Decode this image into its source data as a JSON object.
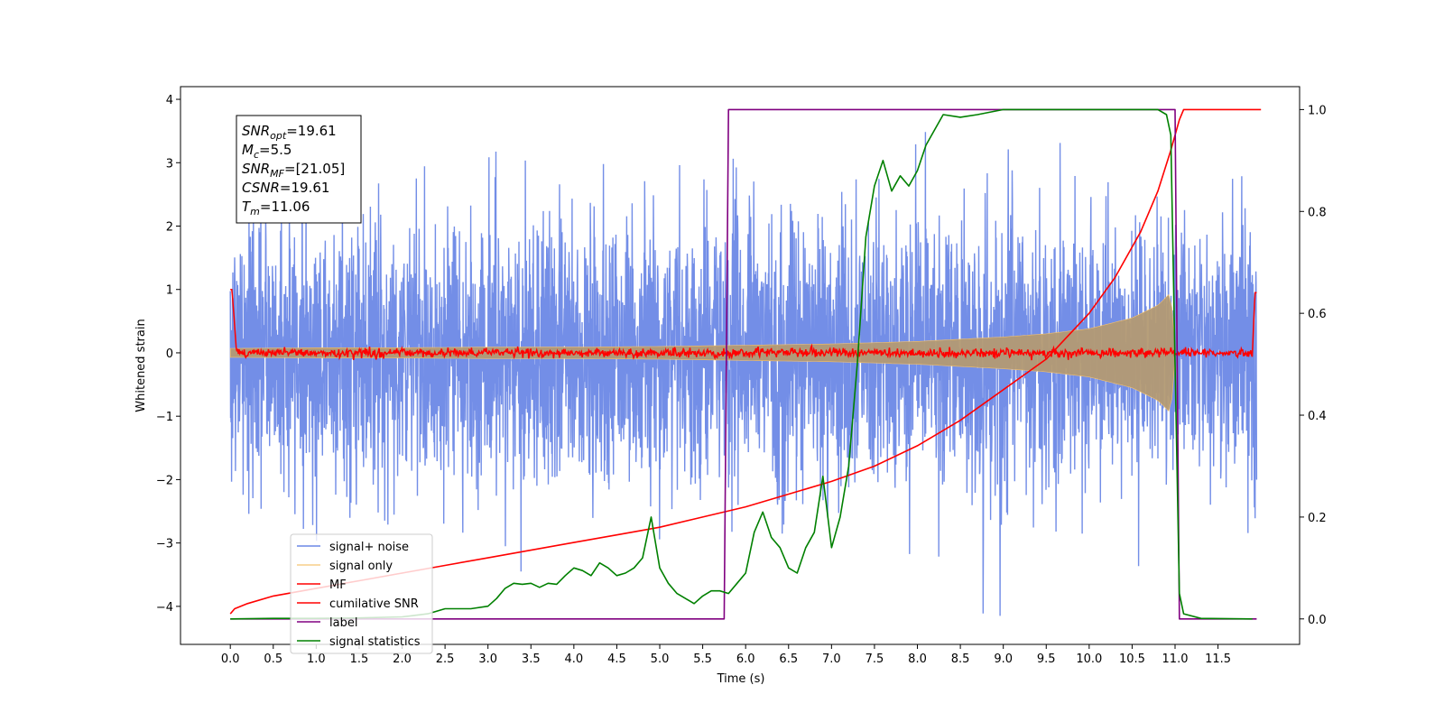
{
  "chart_data": {
    "type": "line",
    "title": "",
    "xlabel": "Time (s)",
    "ylabel": "Whitened strain",
    "y2label": "",
    "xlim": [
      -0.58,
      12.45
    ],
    "ylim": [
      -4.6,
      4.2
    ],
    "y2lim": [
      -0.05,
      1.045
    ],
    "grid": false,
    "legend_position": "lower-left",
    "x_ticks": [
      0.0,
      0.5,
      1.0,
      1.5,
      2.0,
      2.5,
      3.0,
      3.5,
      4.0,
      4.5,
      5.0,
      5.5,
      6.0,
      6.5,
      7.0,
      7.5,
      8.0,
      8.5,
      9.0,
      9.5,
      10.0,
      10.5,
      11.0,
      11.5
    ],
    "x_tick_labels": [
      "0.0",
      "0.5",
      "1.0",
      "1.5",
      "2.0",
      "2.5",
      "3.0",
      "3.5",
      "4.0",
      "4.5",
      "5.0",
      "5.5",
      "6.0",
      "6.5",
      "7.0",
      "7.5",
      "8.0",
      "8.5",
      "9.0",
      "9.5",
      "10.0",
      "10.5",
      "11.0",
      "11.5"
    ],
    "y_ticks": [
      -4,
      -3,
      -2,
      -1,
      0,
      1,
      2,
      3,
      4
    ],
    "y_tick_labels": [
      "−4",
      "−3",
      "−2",
      "−1",
      "0",
      "1",
      "2",
      "3",
      "4"
    ],
    "y2_ticks": [
      0.0,
      0.2,
      0.4,
      0.6,
      0.8,
      1.0
    ],
    "y2_tick_labels": [
      "0.0",
      "0.2",
      "0.4",
      "0.6",
      "0.8",
      "1.0"
    ],
    "annotation_lines": [
      {
        "sym": "SNR",
        "sub": "opt",
        "text": "=19.61"
      },
      {
        "sym": "M",
        "sub": "c",
        "text": "=5.5"
      },
      {
        "sym": "SNR",
        "sub": "MF",
        "text": "=[21.05]"
      },
      {
        "sym": "CSNR",
        "sub": "",
        "text": "=19.61"
      },
      {
        "sym": "T",
        "sub": "m",
        "text": "=11.06"
      }
    ],
    "series": [
      {
        "name": "signal+ noise",
        "color": "#6b88e6",
        "axis": "left",
        "description": "whitened noisy strain, approx. unit-variance noise spanning roughly -4 to 3.8 over 0-12 s"
      },
      {
        "name": "signal only",
        "color": "#f5c16c",
        "axis": "left",
        "envelope_x": [
          0.0,
          1.0,
          2.0,
          3.0,
          4.0,
          5.0,
          6.0,
          7.0,
          8.0,
          9.0,
          9.5,
          10.0,
          10.5,
          10.8,
          10.95,
          11.0
        ],
        "envelope_amp": [
          0.07,
          0.08,
          0.08,
          0.09,
          0.09,
          0.1,
          0.12,
          0.14,
          0.18,
          0.25,
          0.3,
          0.38,
          0.55,
          0.75,
          0.95,
          0.1
        ]
      },
      {
        "name": "MF",
        "color": "#ff0000",
        "axis": "left",
        "description": "matched-filter output, near 0 with small fluctuations, spikes to ~1.0 at both ends"
      },
      {
        "name": "cumilative SNR",
        "color": "#ff0000",
        "axis": "right",
        "x": [
          0.0,
          0.05,
          0.2,
          0.5,
          1.0,
          1.5,
          2.0,
          2.5,
          3.0,
          3.5,
          4.0,
          4.5,
          5.0,
          5.5,
          6.0,
          6.5,
          7.0,
          7.5,
          8.0,
          8.5,
          9.0,
          9.5,
          10.0,
          10.3,
          10.6,
          10.8,
          10.95,
          11.05,
          11.1,
          11.5,
          12.0
        ],
        "y": [
          0.01,
          0.02,
          0.03,
          0.045,
          0.06,
          0.075,
          0.09,
          0.105,
          0.12,
          0.135,
          0.15,
          0.165,
          0.18,
          0.2,
          0.22,
          0.245,
          0.27,
          0.3,
          0.34,
          0.39,
          0.45,
          0.51,
          0.6,
          0.67,
          0.76,
          0.84,
          0.92,
          0.98,
          1.0,
          1.0,
          1.0
        ]
      },
      {
        "name": "label",
        "color": "#800080",
        "axis": "right",
        "x": [
          0.0,
          5.75,
          5.8,
          11.0,
          11.05,
          11.95
        ],
        "y": [
          0.0,
          0.0,
          1.0,
          1.0,
          0.0,
          0.0
        ]
      },
      {
        "name": "signal statistics",
        "color": "#008000",
        "axis": "right",
        "x": [
          0.0,
          0.5,
          1.0,
          1.5,
          2.0,
          2.1,
          2.3,
          2.5,
          2.6,
          2.8,
          3.0,
          3.1,
          3.2,
          3.3,
          3.4,
          3.5,
          3.6,
          3.7,
          3.8,
          3.9,
          4.0,
          4.1,
          4.2,
          4.3,
          4.4,
          4.5,
          4.6,
          4.7,
          4.8,
          4.9,
          5.0,
          5.1,
          5.2,
          5.3,
          5.4,
          5.5,
          5.6,
          5.7,
          5.8,
          5.9,
          6.0,
          6.1,
          6.2,
          6.3,
          6.4,
          6.5,
          6.6,
          6.7,
          6.8,
          6.9,
          7.0,
          7.1,
          7.2,
          7.3,
          7.4,
          7.5,
          7.6,
          7.7,
          7.8,
          7.9,
          8.0,
          8.1,
          8.2,
          8.3,
          8.5,
          8.7,
          9.0,
          9.5,
          10.0,
          10.5,
          10.8,
          10.9,
          10.95,
          11.0,
          11.05,
          11.1,
          11.3,
          11.9
        ],
        "y": [
          0.0,
          0.001,
          0.001,
          0.002,
          0.004,
          0.006,
          0.01,
          0.02,
          0.02,
          0.02,
          0.025,
          0.04,
          0.06,
          0.07,
          0.068,
          0.07,
          0.062,
          0.07,
          0.068,
          0.085,
          0.1,
          0.095,
          0.085,
          0.11,
          0.1,
          0.085,
          0.09,
          0.1,
          0.12,
          0.2,
          0.1,
          0.07,
          0.05,
          0.04,
          0.03,
          0.045,
          0.055,
          0.055,
          0.05,
          0.07,
          0.09,
          0.17,
          0.21,
          0.16,
          0.14,
          0.1,
          0.09,
          0.14,
          0.17,
          0.28,
          0.14,
          0.2,
          0.3,
          0.5,
          0.75,
          0.85,
          0.9,
          0.84,
          0.87,
          0.85,
          0.88,
          0.93,
          0.96,
          0.99,
          0.985,
          0.99,
          1.0,
          1.0,
          1.0,
          1.0,
          1.0,
          0.99,
          0.95,
          0.5,
          0.05,
          0.01,
          0.001,
          0.0
        ]
      }
    ]
  }
}
